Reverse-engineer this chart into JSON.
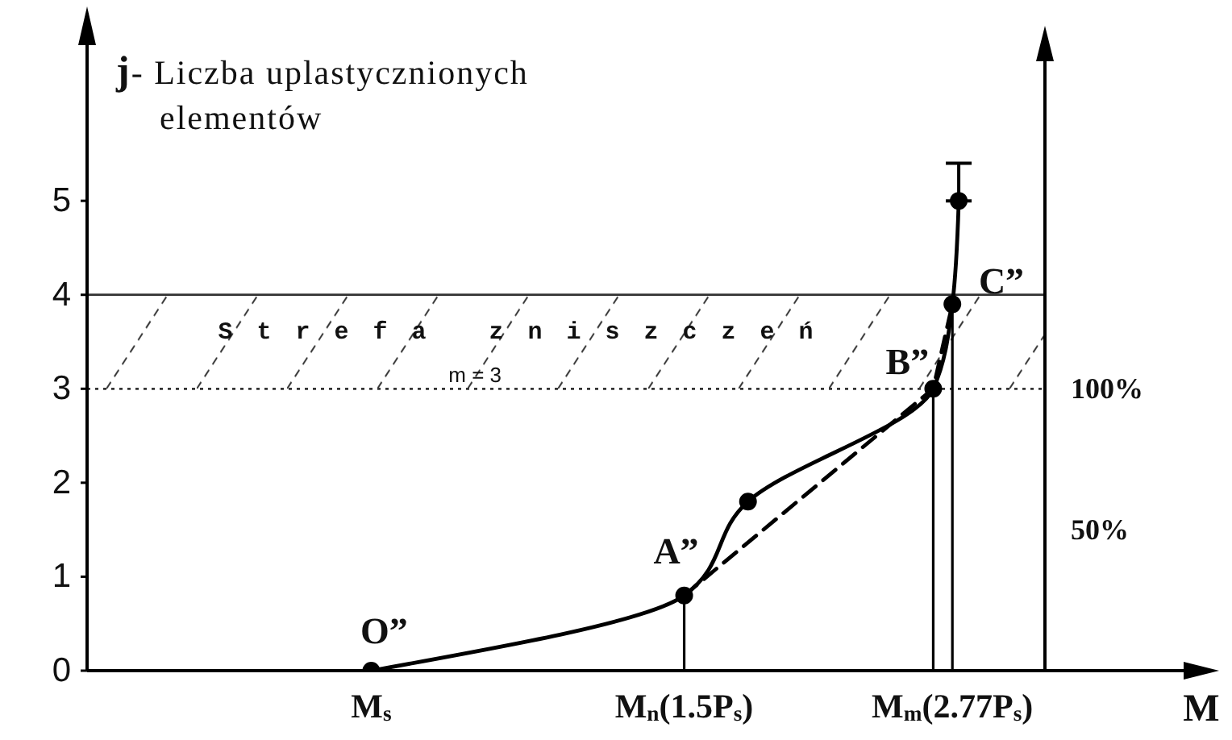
{
  "chart_data": {
    "type": "line",
    "ylabel": "j- Liczba uplastycznionych elementów",
    "xlabel": "M",
    "categories": [
      null,
      null,
      null,
      null,
      null,
      null,
      null,
      null,
      null,
      null,
      null,
      null,
      null,
      null,
      null,
      null,
      null,
      null,
      null,
      null,
      null,
      null,
      null,
      null,
      null,
      null,
      null,
      null,
      null,
      null,
      null,
      null,
      null,
      null,
      null,
      null,
      null,
      null,
      null,
      null,
      null,
      null,
      null,
      null,
      "M$_{s}$",
      null,
      null,
      null,
      null,
      null,
      null,
      null,
      null,
      null,
      null,
      null,
      null,
      null,
      null,
      null,
      null,
      null,
      null,
      null,
      null,
      null,
      null,
      null,
      null,
      null,
      null,
      null,
      null,
      null,
      null,
      null,
      null,
      null,
      null,
      null,
      null,
      null,
      null,
      null,
      null,
      null,
      null,
      null,
      null,
      null,
      null,
      null,
      null,
      "M$_{n}$(1.5P$_{s}$)",
      null,
      null,
      null,
      null,
      null,
      null,
      null,
      null,
      null,
      null,
      null,
      null,
      null,
      null,
      null,
      null,
      null,
      null,
      null,
      null,
      null,
      null,
      null,
      null,
      null,
      null,
      null,
      null,
      null,
      null,
      null,
      null,
      null,
      null,
      null,
      null,
      null,
      null,
      null,
      null,
      null,
      "M$_{m}$(2.77P$_{s}$)",
      null,
      null,
      null,
      null,
      null,
      null,
      null,
      null,
      null,
      null,
      null,
      null,
      null,
      null
    ],
    "ylim": [
      0,
      7
    ],
    "yticks": [
      0,
      1,
      2,
      3,
      4,
      5
    ],
    "y2lim": [
      0,
      233
    ],
    "y2ticks": [
      {
        "value": 50,
        "label": "50%"
      },
      {
        "value": 100,
        "label": "100%"
      }
    ],
    "series": [
      {
        "color": "#000000",
        "line_style": "solid",
        "values": [
          null,
          null,
          null,
          null,
          null,
          null,
          null,
          null,
          null,
          null,
          null,
          null,
          null,
          null,
          null,
          null,
          null,
          null,
          null,
          null,
          null,
          null,
          null,
          null,
          null,
          null,
          null,
          null,
          null,
          null,
          null,
          null,
          null,
          null,
          null,
          null,
          null,
          null,
          null,
          null,
          null,
          null,
          null,
          null,
          0,
          null,
          null,
          null,
          null,
          null,
          null,
          null,
          null,
          null,
          null,
          null,
          null,
          null,
          null,
          null,
          null,
          null,
          null,
          null,
          null,
          null,
          null,
          null,
          null,
          null,
          null,
          null,
          null,
          null,
          null,
          null,
          null,
          null,
          null,
          null,
          null,
          null,
          null,
          null,
          null,
          null,
          null,
          null,
          null,
          null,
          null,
          null,
          null,
          0.8,
          null,
          null,
          null,
          null,
          null,
          null,
          null,
          null,
          null,
          1.8,
          null,
          null,
          null,
          null,
          null,
          null,
          null,
          null,
          null,
          null,
          null,
          null,
          null,
          null,
          null,
          null,
          null,
          null,
          null,
          null,
          null,
          null,
          null,
          null,
          null,
          null,
          null,
          null,
          3,
          null,
          null,
          3.9,
          5,
          null,
          null,
          null,
          null,
          null,
          null,
          null,
          null,
          null,
          null,
          null,
          null,
          null
        ]
      },
      {
        "color": "#000000",
        "line_style": "dashed",
        "values": [
          null,
          null,
          null,
          null,
          null,
          null,
          null,
          null,
          null,
          null,
          null,
          null,
          null,
          null,
          null,
          null,
          null,
          null,
          null,
          null,
          null,
          null,
          null,
          null,
          null,
          null,
          null,
          null,
          null,
          null,
          null,
          null,
          null,
          null,
          null,
          null,
          null,
          null,
          null,
          null,
          null,
          null,
          null,
          null,
          null,
          null,
          null,
          null,
          null,
          null,
          null,
          null,
          null,
          null,
          null,
          null,
          null,
          null,
          null,
          null,
          null,
          null,
          null,
          null,
          null,
          null,
          null,
          null,
          null,
          null,
          null,
          null,
          null,
          null,
          null,
          null,
          null,
          null,
          null,
          null,
          null,
          null,
          null,
          null,
          null,
          null,
          null,
          null,
          null,
          null,
          null,
          null,
          null,
          0.8,
          null,
          null,
          null,
          null,
          null,
          null,
          null,
          null,
          null,
          null,
          null,
          null,
          null,
          null,
          null,
          null,
          null,
          null,
          null,
          null,
          null,
          null,
          null,
          null,
          null,
          null,
          null,
          null,
          null,
          null,
          null,
          null,
          null,
          null,
          null,
          null,
          null,
          null,
          3,
          null,
          null,
          3.9,
          null,
          null,
          null,
          null,
          null,
          null,
          null,
          null,
          null,
          null,
          null,
          null,
          null,
          null
        ]
      },
      {
        "type": "lollipop",
        "color": "#000000",
        "marker": "circle",
        "values": [
          null,
          null,
          null,
          null,
          null,
          null,
          null,
          null,
          null,
          null,
          null,
          null,
          null,
          null,
          null,
          null,
          null,
          null,
          null,
          null,
          null,
          null,
          null,
          null,
          null,
          null,
          null,
          null,
          null,
          null,
          null,
          null,
          null,
          null,
          null,
          null,
          null,
          null,
          null,
          null,
          null,
          null,
          null,
          null,
          null,
          null,
          null,
          null,
          null,
          null,
          null,
          null,
          null,
          null,
          null,
          null,
          null,
          null,
          null,
          null,
          null,
          null,
          null,
          null,
          null,
          null,
          null,
          null,
          null,
          null,
          null,
          null,
          null,
          null,
          null,
          null,
          null,
          null,
          null,
          null,
          null,
          null,
          null,
          null,
          null,
          null,
          null,
          null,
          null,
          null,
          null,
          null,
          null,
          0.8,
          null,
          null,
          null,
          null,
          null,
          null,
          null,
          null,
          null,
          null,
          null,
          null,
          null,
          null,
          null,
          null,
          null,
          null,
          null,
          null,
          null,
          null,
          null,
          null,
          null,
          null,
          null,
          null,
          null,
          null,
          null,
          null,
          null,
          null,
          null,
          null,
          null,
          null,
          3,
          null,
          null,
          3.9,
          null,
          null,
          null,
          null,
          null,
          null,
          null,
          null,
          null,
          null,
          null,
          null,
          null,
          null
        ]
      },
      {
        "type": "scatter",
        "color": "#000000",
        "marker": "circle",
        "values": [
          null,
          null,
          null,
          null,
          null,
          null,
          null,
          null,
          null,
          null,
          null,
          null,
          null,
          null,
          null,
          null,
          null,
          null,
          null,
          null,
          null,
          null,
          null,
          null,
          null,
          null,
          null,
          null,
          null,
          null,
          null,
          null,
          null,
          null,
          null,
          null,
          null,
          null,
          null,
          null,
          null,
          null,
          null,
          null,
          0,
          null,
          null,
          null,
          null,
          null,
          null,
          null,
          null,
          null,
          null,
          null,
          null,
          null,
          null,
          null,
          null,
          null,
          null,
          null,
          null,
          null,
          null,
          null,
          null,
          null,
          null,
          null,
          null,
          null,
          null,
          null,
          null,
          null,
          null,
          null,
          null,
          null,
          null,
          null,
          null,
          null,
          null,
          null,
          null,
          null,
          null,
          null,
          null,
          null,
          null,
          null,
          null,
          null,
          null,
          null,
          null,
          null,
          null,
          1.8,
          null,
          null,
          null,
          null,
          null,
          null,
          null,
          null,
          null,
          null,
          null,
          null,
          null,
          null,
          null,
          null,
          null,
          null,
          null,
          null,
          null,
          null,
          null,
          null,
          null,
          null,
          null,
          null,
          null,
          null,
          null,
          null,
          5,
          null,
          null,
          null,
          null,
          null,
          null,
          null,
          null,
          null,
          null,
          null,
          null,
          null
        ],
        "errors": [
          null,
          null,
          null,
          null,
          null,
          null,
          null,
          null,
          null,
          null,
          null,
          null,
          null,
          null,
          null,
          null,
          null,
          null,
          null,
          null,
          null,
          null,
          null,
          null,
          null,
          null,
          null,
          null,
          null,
          null,
          null,
          null,
          null,
          null,
          null,
          null,
          null,
          null,
          null,
          null,
          null,
          null,
          null,
          null,
          null,
          null,
          null,
          null,
          null,
          null,
          null,
          null,
          null,
          null,
          null,
          null,
          null,
          null,
          null,
          null,
          null,
          null,
          null,
          null,
          null,
          null,
          null,
          null,
          null,
          null,
          null,
          null,
          null,
          null,
          null,
          null,
          null,
          null,
          null,
          null,
          null,
          null,
          null,
          null,
          null,
          null,
          null,
          null,
          null,
          null,
          null,
          null,
          null,
          null,
          null,
          null,
          null,
          null,
          null,
          null,
          null,
          null,
          null,
          null,
          null,
          null,
          null,
          null,
          null,
          null,
          null,
          null,
          null,
          null,
          null,
          null,
          null,
          null,
          null,
          null,
          null,
          null,
          null,
          null,
          null,
          null,
          null,
          null,
          null,
          null,
          null,
          null,
          null,
          null,
          null,
          null,
          [
            5,
            5.4
          ],
          null,
          null,
          null,
          null,
          null,
          null,
          null,
          null,
          null,
          null,
          null,
          null,
          null
        ]
      }
    ],
    "bands": [
      {
        "axis": "y",
        "from": 3,
        "to": 4,
        "label": "Strefa zniszczeń",
        "color": "#333333"
      }
    ],
    "ref_lines": [
      {
        "axis": "y",
        "value": 3,
        "label": "m = 3",
        "color": "#333333",
        "line_style": "dotted"
      },
      {
        "axis": "y",
        "value": 4,
        "color": "#333333",
        "line_style": "solid"
      }
    ],
    "annotations": [
      {
        "text": "O”",
        "y": 0
      },
      {
        "text": "A”",
        "y": 0.8
      },
      {
        "text": "B”",
        "y": 3
      },
      "C”"
    ]
  }
}
